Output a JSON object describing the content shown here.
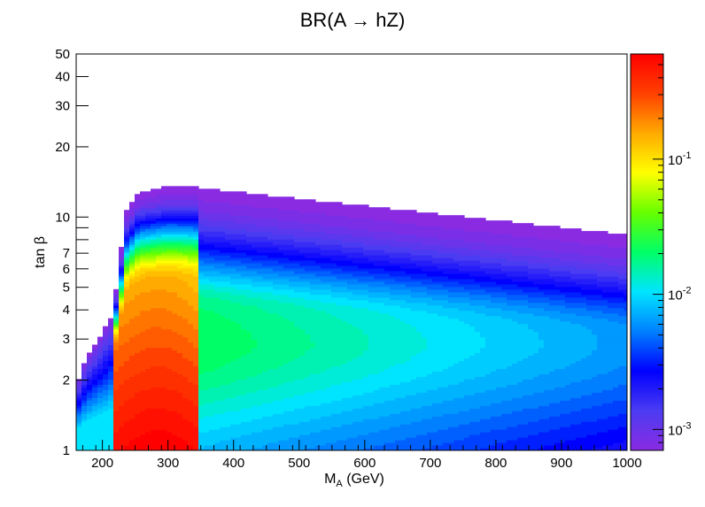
{
  "chart_data": {
    "type": "heatmap",
    "title": "BR(A → hZ)",
    "xlabel": "M_A (GeV)",
    "xlabel_main": "M",
    "xlabel_sub": "A",
    "xlabel_rest": " (GeV)",
    "ylabel": "tan β",
    "xlim": [
      160,
      1000
    ],
    "ylim": [
      1,
      50
    ],
    "y_scale": "log",
    "z_scale": "log",
    "zlim": [
      0.0007,
      0.6
    ],
    "x_ticks": [
      200,
      300,
      400,
      500,
      600,
      700,
      800,
      900,
      1000
    ],
    "x_tick_labels": [
      "200",
      "300",
      "400",
      "500",
      "600",
      "700",
      "800",
      "900",
      "1000"
    ],
    "y_ticks": [
      1,
      2,
      3,
      4,
      5,
      6,
      7,
      10,
      20,
      30,
      40,
      50
    ],
    "y_tick_labels": [
      "1",
      "2",
      "3",
      "4",
      "5",
      "6",
      "7",
      "10",
      "20",
      "30",
      "40",
      "50"
    ],
    "colorbar": {
      "ticks": [
        0.001,
        0.01,
        0.1
      ],
      "tick_base": [
        "10",
        "10",
        "10"
      ],
      "tick_exp": [
        "-3",
        "-2",
        "-1"
      ],
      "palette": [
        "#8a2be2",
        "#4b3cf2",
        "#0000ff",
        "#0080ff",
        "#00e5ff",
        "#00ff66",
        "#66ff00",
        "#ffff00",
        "#ffaa00",
        "#ff4000",
        "#ff0000"
      ]
    },
    "region": {
      "description_points_upper_edge_tanb": [
        [
          160,
          1.9
        ],
        [
          175,
          2.5
        ],
        [
          190,
          2.9
        ],
        [
          200,
          3.2
        ],
        [
          215,
          3.8
        ],
        [
          225,
          6.0
        ],
        [
          235,
          10.5
        ],
        [
          255,
          12.8
        ],
        [
          300,
          13.5
        ],
        [
          335,
          13.5
        ],
        [
          1000,
          8.4
        ]
      ],
      "peak": {
        "x": 285,
        "y": 1.0,
        "value": 0.6
      },
      "features": [
        {
          "name": "threshold_low",
          "x": 220
        },
        {
          "name": "threshold_high",
          "x": 345
        }
      ]
    }
  }
}
